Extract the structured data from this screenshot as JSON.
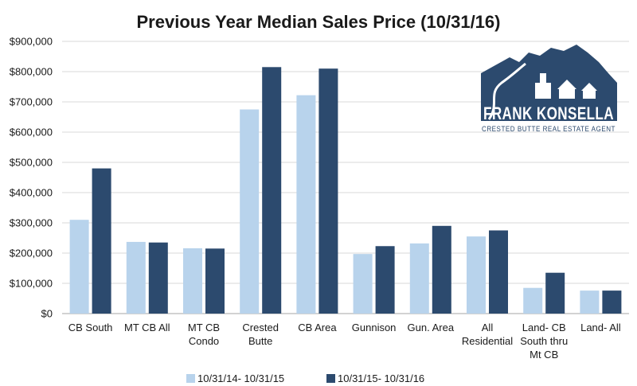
{
  "chart_data": {
    "type": "bar",
    "title": "Previous Year Median Sales Price (10/31/16)",
    "xlabel": "",
    "ylabel": "",
    "ylim": [
      0,
      900000
    ],
    "yticks": [
      0,
      100000,
      200000,
      300000,
      400000,
      500000,
      600000,
      700000,
      800000,
      900000
    ],
    "ytick_labels": [
      "$0",
      "$100,000",
      "$200,000",
      "$300,000",
      "$400,000",
      "$500,000",
      "$600,000",
      "$700,000",
      "$800,000",
      "$900,000"
    ],
    "grid": true,
    "legend_position": "bottom",
    "categories": [
      [
        "CB South"
      ],
      [
        "MT CB All"
      ],
      [
        "MT CB",
        "Condo"
      ],
      [
        "Crested",
        "Butte"
      ],
      [
        "CB Area"
      ],
      [
        "Gunnison"
      ],
      [
        "Gun. Area"
      ],
      [
        "All",
        "Residential"
      ],
      [
        "Land- CB",
        "South thru",
        "Mt CB"
      ],
      [
        "Land- All"
      ]
    ],
    "series": [
      {
        "name": "10/31/14- 10/31/15",
        "color": "#b8d3ec",
        "values": [
          310000,
          237000,
          216000,
          675000,
          722000,
          197000,
          232000,
          255000,
          85000,
          76000
        ]
      },
      {
        "name": "10/31/15- 10/31/16",
        "color": "#2c4a6e",
        "values": [
          480000,
          235000,
          215000,
          815000,
          810000,
          223000,
          290000,
          275000,
          135000,
          76000
        ]
      }
    ]
  },
  "logo": {
    "name": "FRANK KONSELLA",
    "tagline": "CRESTED BUTTE REAL ESTATE AGENT",
    "color": "#2c4a6e"
  }
}
